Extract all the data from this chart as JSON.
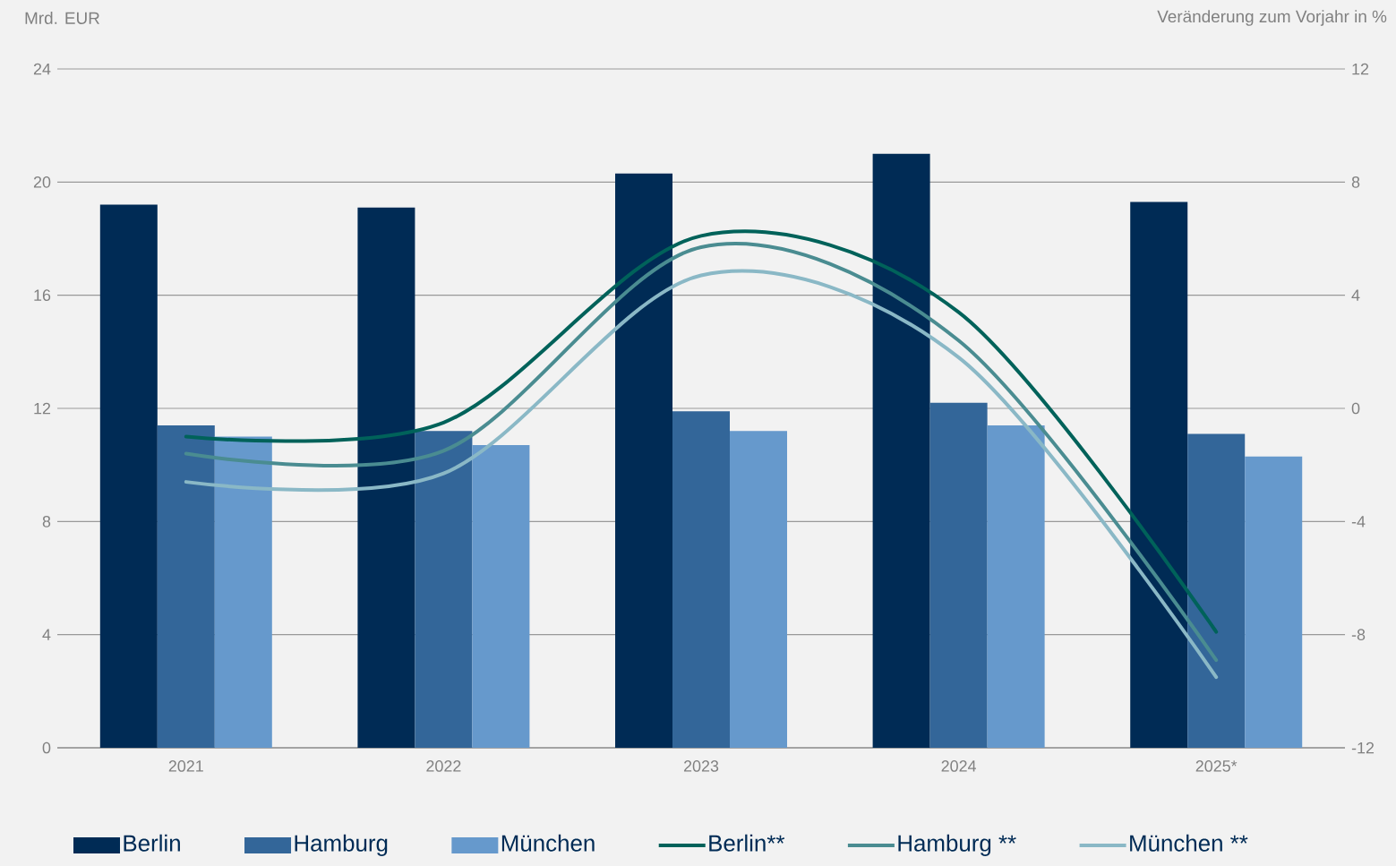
{
  "chart_data": {
    "type": "bar",
    "ylabel": "Mrd. EUR",
    "y2label": "Veränderung zum Vorjahr in %",
    "categories": [
      "2021",
      "2022",
      "2023",
      "2024",
      "2025*"
    ],
    "ylim": [
      0,
      24
    ],
    "yticks": [
      0,
      4,
      8,
      12,
      16,
      20,
      24
    ],
    "y2lim": [
      -12,
      12
    ],
    "y2ticks": [
      -12,
      -8,
      -4,
      0,
      4,
      8,
      12
    ],
    "grid": "y",
    "legend": "bottom",
    "series": [
      {
        "name": "Berlin",
        "color": "#002b55",
        "values": [
          19.2,
          19.1,
          20.3,
          21.0,
          19.3
        ]
      },
      {
        "name": "Hamburg",
        "color": "#336699",
        "values": [
          11.4,
          11.2,
          11.9,
          12.2,
          11.1
        ]
      },
      {
        "name": "München",
        "color": "#6699cc",
        "values": [
          11.0,
          10.7,
          11.2,
          11.4,
          10.3
        ]
      },
      {
        "name": "Berlin**",
        "type": "line",
        "axis": "y2",
        "color": "#00625a",
        "values": [
          -1.0,
          -0.5,
          6.1,
          3.4,
          -7.9
        ]
      },
      {
        "name": "Hamburg **",
        "type": "line",
        "axis": "y2",
        "color": "#4a8c91",
        "values": [
          -1.6,
          -1.5,
          5.7,
          2.4,
          -8.9
        ]
      },
      {
        "name": "München **",
        "type": "line",
        "axis": "y2",
        "color": "#8ab8c6",
        "values": [
          -2.6,
          -2.3,
          4.7,
          1.8,
          -9.5
        ]
      }
    ]
  }
}
